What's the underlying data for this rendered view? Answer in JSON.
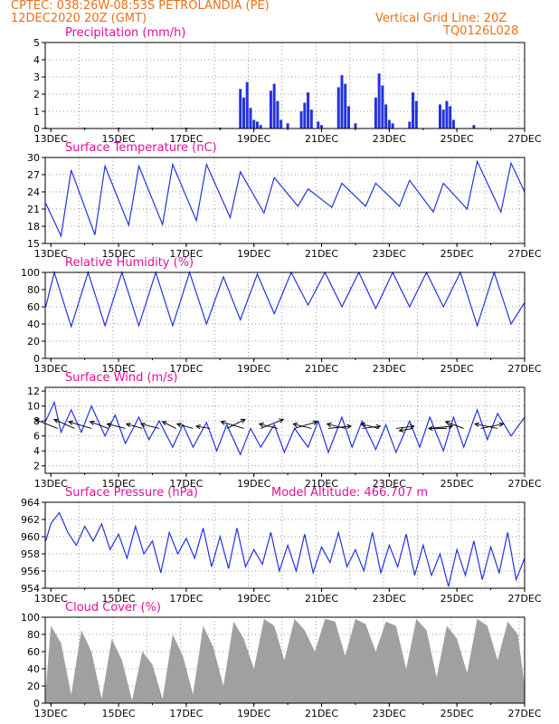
{
  "header": {
    "left_line1": "CPTEC:   038:26W-08:53S   PETROLANDIA (PE)",
    "left_line2": "12DEC2020 20Z (GMT)",
    "right_line1": "Vertical Grid Line: 20Z",
    "right_line2": "TQ0126L028"
  },
  "colors": {
    "header": "#e8701a",
    "title": "#e0109a",
    "series": "#2233dd",
    "cloud": "#a0a0a0",
    "grid": "#999999"
  },
  "x_axis": {
    "start": "12DEC2020 20Z",
    "end": "27DEC2020 00Z",
    "tick_labels": [
      "13DEC",
      "15DEC",
      "17DEC",
      "19DEC",
      "21DEC",
      "23DEC",
      "25DEC",
      "27DEC"
    ]
  },
  "chart_data": [
    {
      "type": "bar",
      "title": "Precipitation (mm/h)",
      "ylim": [
        0,
        5
      ],
      "yticks": [
        "0",
        "1",
        "2",
        "3",
        "4",
        "5"
      ],
      "x_day": [
        12.85,
        14.0,
        15.0,
        16.0,
        17.0,
        18.0,
        18.6,
        18.7,
        18.8,
        18.9,
        19.0,
        19.1,
        19.2,
        19.5,
        19.6,
        19.7,
        19.8,
        20.0,
        20.4,
        20.5,
        20.6,
        20.7,
        20.9,
        21.0,
        21.5,
        21.6,
        21.7,
        21.8,
        22.0,
        22.6,
        22.7,
        22.8,
        22.9,
        23.0,
        23.1,
        23.6,
        23.7,
        23.8,
        24.5,
        24.6,
        24.7,
        24.8,
        24.9,
        25.5
      ],
      "values": [
        0.05,
        0.05,
        0.05,
        0.05,
        0.05,
        0.05,
        2.3,
        1.8,
        2.7,
        1.2,
        0.5,
        0.4,
        0.2,
        2.2,
        2.6,
        1.6,
        0.5,
        0.3,
        1.0,
        1.5,
        2.1,
        1.1,
        0.4,
        0.2,
        2.4,
        3.1,
        2.6,
        1.3,
        0.3,
        1.8,
        3.2,
        2.5,
        1.4,
        0.5,
        0.3,
        0.4,
        2.1,
        1.6,
        1.4,
        1.1,
        1.6,
        1.3,
        0.5,
        0.2
      ]
    },
    {
      "type": "line",
      "title": "Surface Temperature (nC)",
      "ylim": [
        15,
        30
      ],
      "yticks": [
        "15",
        "18",
        "21",
        "24",
        "27",
        "30"
      ],
      "series": [
        {
          "x_day": [
            12.85,
            13.3,
            13.6,
            14.3,
            14.6,
            15.3,
            15.6,
            16.3,
            16.6,
            17.3,
            17.6,
            18.3,
            18.6,
            19.3,
            19.6,
            20.3,
            20.6,
            21.3,
            21.6,
            22.3,
            22.6,
            23.3,
            23.6,
            24.3,
            24.6,
            25.3,
            25.6,
            26.3,
            26.6,
            27.0
          ],
          "values": [
            22,
            16.3,
            27.8,
            16.5,
            28.5,
            18.2,
            28.5,
            18.3,
            28.8,
            19.0,
            28.8,
            19.5,
            27.5,
            20.3,
            26.5,
            21.5,
            24.5,
            21.3,
            25.5,
            21.5,
            25.5,
            21.5,
            26.0,
            20.5,
            25.5,
            21.0,
            29.3,
            20.5,
            29.0,
            24.0
          ]
        }
      ]
    },
    {
      "type": "line",
      "title": "Relative Humidity (%)",
      "ylim": [
        0,
        100
      ],
      "yticks": [
        "0",
        "20",
        "40",
        "60",
        "80",
        "100"
      ],
      "series": [
        {
          "x_day": [
            12.85,
            13.1,
            13.6,
            14.1,
            14.6,
            15.1,
            15.6,
            16.1,
            16.6,
            17.1,
            17.6,
            18.1,
            18.6,
            19.1,
            19.6,
            20.1,
            20.6,
            21.1,
            21.6,
            22.1,
            22.6,
            23.1,
            23.6,
            24.1,
            24.6,
            25.1,
            25.6,
            26.1,
            26.6,
            27.0
          ],
          "values": [
            60,
            100,
            37,
            100,
            38,
            100,
            38,
            100,
            38,
            100,
            40,
            95,
            45,
            98,
            52,
            100,
            62,
            100,
            60,
            100,
            58,
            100,
            60,
            100,
            60,
            100,
            38,
            100,
            40,
            65
          ]
        }
      ]
    },
    {
      "type": "line",
      "title": "Surface Wind (m/s)",
      "ylim": [
        1,
        12.5
      ],
      "yticks": [
        "2",
        "4",
        "6",
        "8",
        "10",
        "12"
      ],
      "series": [
        {
          "x_day": [
            12.85,
            13.1,
            13.3,
            13.6,
            13.9,
            14.2,
            14.6,
            14.9,
            15.2,
            15.6,
            15.9,
            16.2,
            16.6,
            16.9,
            17.2,
            17.6,
            17.9,
            18.2,
            18.6,
            18.9,
            19.2,
            19.6,
            19.9,
            20.2,
            20.6,
            20.9,
            21.2,
            21.6,
            21.9,
            22.2,
            22.6,
            22.9,
            23.2,
            23.6,
            23.9,
            24.2,
            24.6,
            24.9,
            25.2,
            25.6,
            25.9,
            26.2,
            26.6,
            27.0
          ],
          "values": [
            8,
            10.5,
            6.5,
            9.5,
            6.5,
            10,
            6.0,
            8.8,
            5.0,
            8.5,
            5.5,
            8.0,
            4.5,
            7.5,
            4.5,
            7.8,
            4.0,
            7.5,
            3.5,
            7.0,
            4.5,
            7.5,
            3.8,
            7.0,
            4.5,
            8.0,
            3.8,
            8.5,
            4.5,
            8.0,
            4.2,
            7.5,
            3.8,
            8.0,
            4.5,
            8.5,
            4.0,
            8.5,
            4.5,
            9.5,
            5.5,
            9.0,
            6.0,
            8.5
          ]
        }
      ],
      "vectors": {
        "x_day": [
          13.2,
          13.7,
          14.2,
          14.7,
          15.2,
          15.7,
          16.2,
          16.7,
          17.2,
          17.7,
          18.2,
          18.7,
          19.2,
          19.7,
          20.2,
          20.7,
          21.2,
          21.7,
          22.2,
          22.7,
          23.2,
          23.7,
          24.2,
          24.7,
          25.2,
          25.7,
          26.2
        ],
        "u": [
          -5,
          -4.5,
          -5,
          -4,
          -4,
          -3.5,
          -4,
          -3,
          -3.5,
          -3,
          4,
          -5,
          5,
          -4,
          5,
          -4,
          5,
          -4,
          4,
          -4,
          4,
          -3,
          5,
          -4,
          -4,
          5,
          -5
        ],
        "v": [
          2,
          2,
          1.5,
          1.5,
          1,
          1,
          1,
          1.5,
          1,
          0.5,
          2,
          1.5,
          2,
          1,
          1.5,
          1,
          0.5,
          1,
          0.5,
          1,
          0.5,
          -0.5,
          0.5,
          0,
          1.5,
          1,
          1
        ]
      }
    },
    {
      "type": "line",
      "title": "Surface Pressure (hPa)",
      "annotation": "Model Altitude: 466.707 m",
      "ylim": [
        954,
        964
      ],
      "yticks": [
        "954",
        "956",
        "958",
        "960",
        "962",
        "964"
      ],
      "series": [
        {
          "x_day": [
            12.85,
            13.0,
            13.25,
            13.5,
            13.75,
            14.0,
            14.25,
            14.5,
            14.75,
            15.0,
            15.25,
            15.5,
            15.75,
            16.0,
            16.25,
            16.5,
            16.75,
            17.0,
            17.25,
            17.5,
            17.75,
            18.0,
            18.25,
            18.5,
            18.75,
            19.0,
            19.25,
            19.5,
            19.75,
            20.0,
            20.25,
            20.5,
            20.75,
            21.0,
            21.25,
            21.5,
            21.75,
            22.0,
            22.25,
            22.5,
            22.75,
            23.0,
            23.25,
            23.5,
            23.75,
            24.0,
            24.25,
            24.5,
            24.75,
            25.0,
            25.25,
            25.5,
            25.75,
            26.0,
            26.25,
            26.5,
            26.75,
            27.0
          ],
          "values": [
            959.5,
            961.5,
            962.8,
            960.5,
            959,
            961.2,
            959.5,
            961.5,
            958.5,
            960.3,
            957.5,
            961.2,
            958,
            959.5,
            955.8,
            960.5,
            958,
            959.8,
            957.5,
            961,
            956.5,
            960,
            956.3,
            961,
            956.5,
            958.5,
            956.8,
            960.5,
            956,
            959,
            956,
            960.3,
            955.8,
            958.8,
            957,
            960.5,
            956.5,
            958.5,
            956,
            960.5,
            955.8,
            959,
            956.5,
            960.3,
            955.5,
            959,
            955.5,
            958,
            954.2,
            958.5,
            955.5,
            959.5,
            955,
            958.8,
            955.8,
            960.5,
            955,
            957.5
          ]
        }
      ]
    },
    {
      "type": "area",
      "title": "Cloud Cover (%)",
      "ylim": [
        0,
        100
      ],
      "yticks": [
        "0",
        "20",
        "40",
        "60",
        "80",
        "100"
      ],
      "series": [
        {
          "x_day": [
            12.85,
            13.0,
            13.3,
            13.6,
            13.9,
            14.2,
            14.5,
            14.8,
            15.1,
            15.4,
            15.7,
            16.0,
            16.3,
            16.6,
            16.9,
            17.2,
            17.5,
            17.8,
            18.1,
            18.4,
            18.7,
            19.0,
            19.3,
            19.6,
            19.9,
            20.2,
            20.5,
            20.8,
            21.1,
            21.4,
            21.7,
            22.0,
            22.3,
            22.6,
            22.9,
            23.2,
            23.5,
            23.8,
            24.1,
            24.4,
            24.7,
            25.0,
            25.3,
            25.6,
            25.9,
            26.2,
            26.5,
            26.8,
            27.0
          ],
          "values": [
            15,
            90,
            70,
            10,
            85,
            60,
            5,
            75,
            50,
            3,
            60,
            45,
            5,
            80,
            55,
            10,
            90,
            65,
            20,
            95,
            75,
            40,
            98,
            90,
            50,
            98,
            85,
            60,
            98,
            95,
            55,
            98,
            92,
            60,
            95,
            90,
            40,
            98,
            85,
            30,
            90,
            75,
            35,
            98,
            90,
            50,
            95,
            80,
            20
          ]
        }
      ]
    }
  ]
}
